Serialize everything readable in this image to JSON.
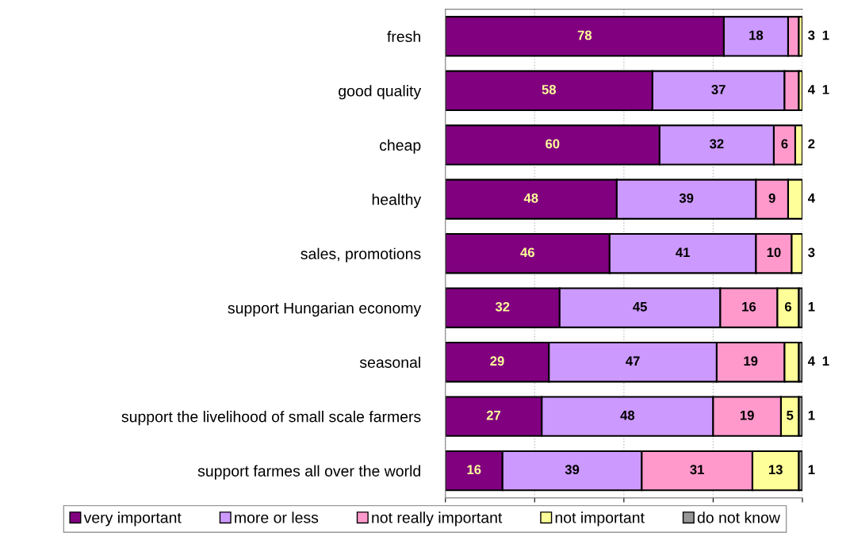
{
  "chart_data": {
    "type": "bar",
    "orientation": "horizontal",
    "stacked": true,
    "data_labels": true,
    "categories": [
      "fresh",
      "good quality",
      "cheap",
      "healthy",
      "sales, promotions",
      "support Hungarian economy",
      "seasonal",
      "support the livelihood of small scale farmers",
      "support farmes all over the world"
    ],
    "series": [
      {
        "name": "very important",
        "color": "#800080",
        "values": [
          78,
          58,
          60,
          48,
          46,
          32,
          29,
          27,
          16
        ]
      },
      {
        "name": "more or less",
        "color": "#cc99ff",
        "values": [
          18,
          37,
          32,
          39,
          41,
          45,
          47,
          48,
          39
        ]
      },
      {
        "name": "not really important",
        "color": "#ff99cc",
        "values": [
          3,
          4,
          6,
          9,
          10,
          16,
          19,
          19,
          31
        ]
      },
      {
        "name": "not important",
        "color": "#ffff99",
        "values": [
          1,
          1,
          2,
          4,
          3,
          6,
          4,
          5,
          13
        ]
      },
      {
        "name": "do not know",
        "color": "#969696",
        "values": [
          null,
          null,
          null,
          null,
          null,
          1,
          1,
          1,
          1
        ]
      }
    ],
    "xlim": [
      0,
      100
    ],
    "xticks": [
      {
        "value": 0,
        "label": null
      },
      {
        "value": 25,
        "label": null
      },
      {
        "value": 50,
        "label": null
      },
      {
        "value": 75,
        "label": null
      },
      {
        "value": 100,
        "label": null
      }
    ],
    "grid": "x",
    "legend": "bottom"
  }
}
